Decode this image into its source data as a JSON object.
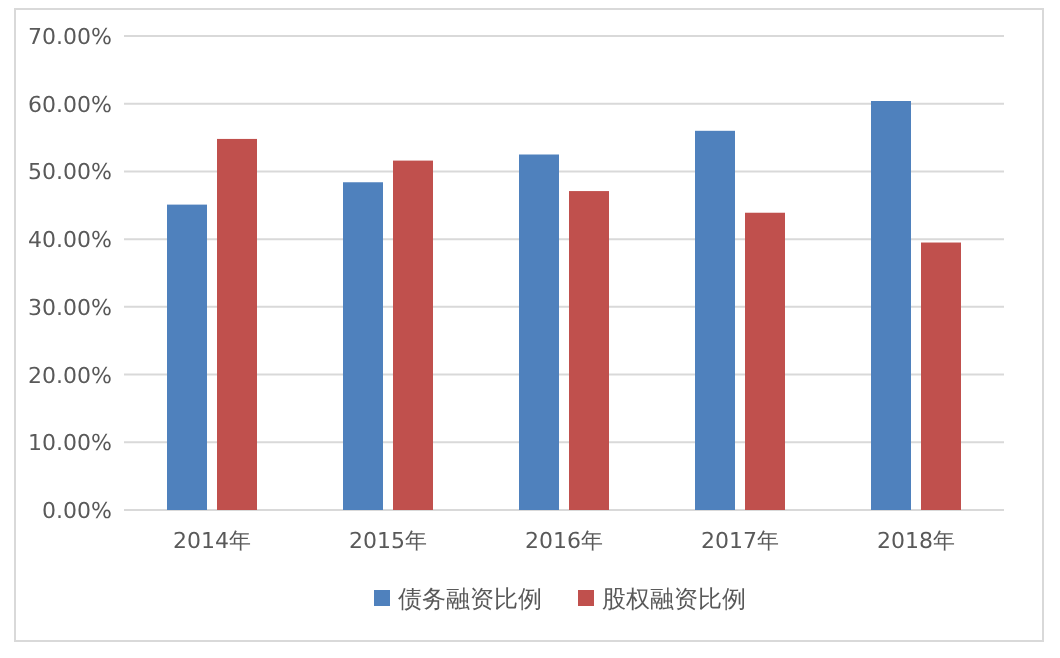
{
  "chart_data": {
    "type": "bar",
    "categories": [
      "2014年",
      "2015年",
      "2016年",
      "2017年",
      "2018年"
    ],
    "series": [
      {
        "name": "债务融资比例",
        "color": "#4f81bd",
        "values": [
          45.1,
          48.4,
          52.5,
          56.0,
          60.4
        ]
      },
      {
        "name": "股权融资比例",
        "color": "#c0504d",
        "values": [
          54.8,
          51.6,
          47.1,
          43.9,
          39.5
        ]
      }
    ],
    "ylim": [
      0,
      70
    ],
    "yticks": [
      {
        "value": 0,
        "label": "0.00%"
      },
      {
        "value": 10,
        "label": "10.00%"
      },
      {
        "value": 20,
        "label": "20.00%"
      },
      {
        "value": 30,
        "label": "30.00%"
      },
      {
        "value": 40,
        "label": "40.00%"
      },
      {
        "value": 50,
        "label": "50.00%"
      },
      {
        "value": 60,
        "label": "60.00%"
      },
      {
        "value": 70,
        "label": "70.00%"
      }
    ],
    "grid": "y",
    "legend": "bottom"
  }
}
